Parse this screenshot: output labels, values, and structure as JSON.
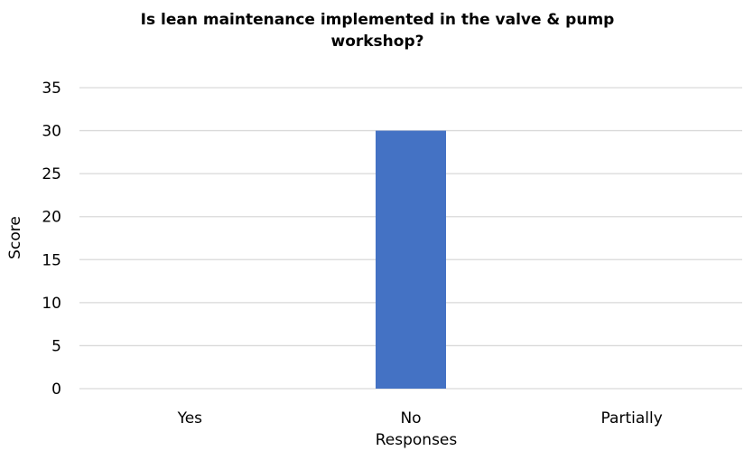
{
  "chart_data": {
    "type": "bar",
    "title_lines": [
      "Is lean maintenance implemented in the valve & pump",
      "workshop?"
    ],
    "xlabel": "Responses",
    "ylabel": "Score",
    "categories": [
      "Yes",
      "No",
      "Partially"
    ],
    "values": [
      0,
      30,
      0
    ],
    "ylim": [
      0,
      35
    ],
    "yticks": [
      0,
      5,
      10,
      15,
      20,
      25,
      30,
      35
    ],
    "grid": true,
    "legend": "none",
    "bar_color": "#4472c4",
    "grid_color": "#d9d9d9"
  }
}
